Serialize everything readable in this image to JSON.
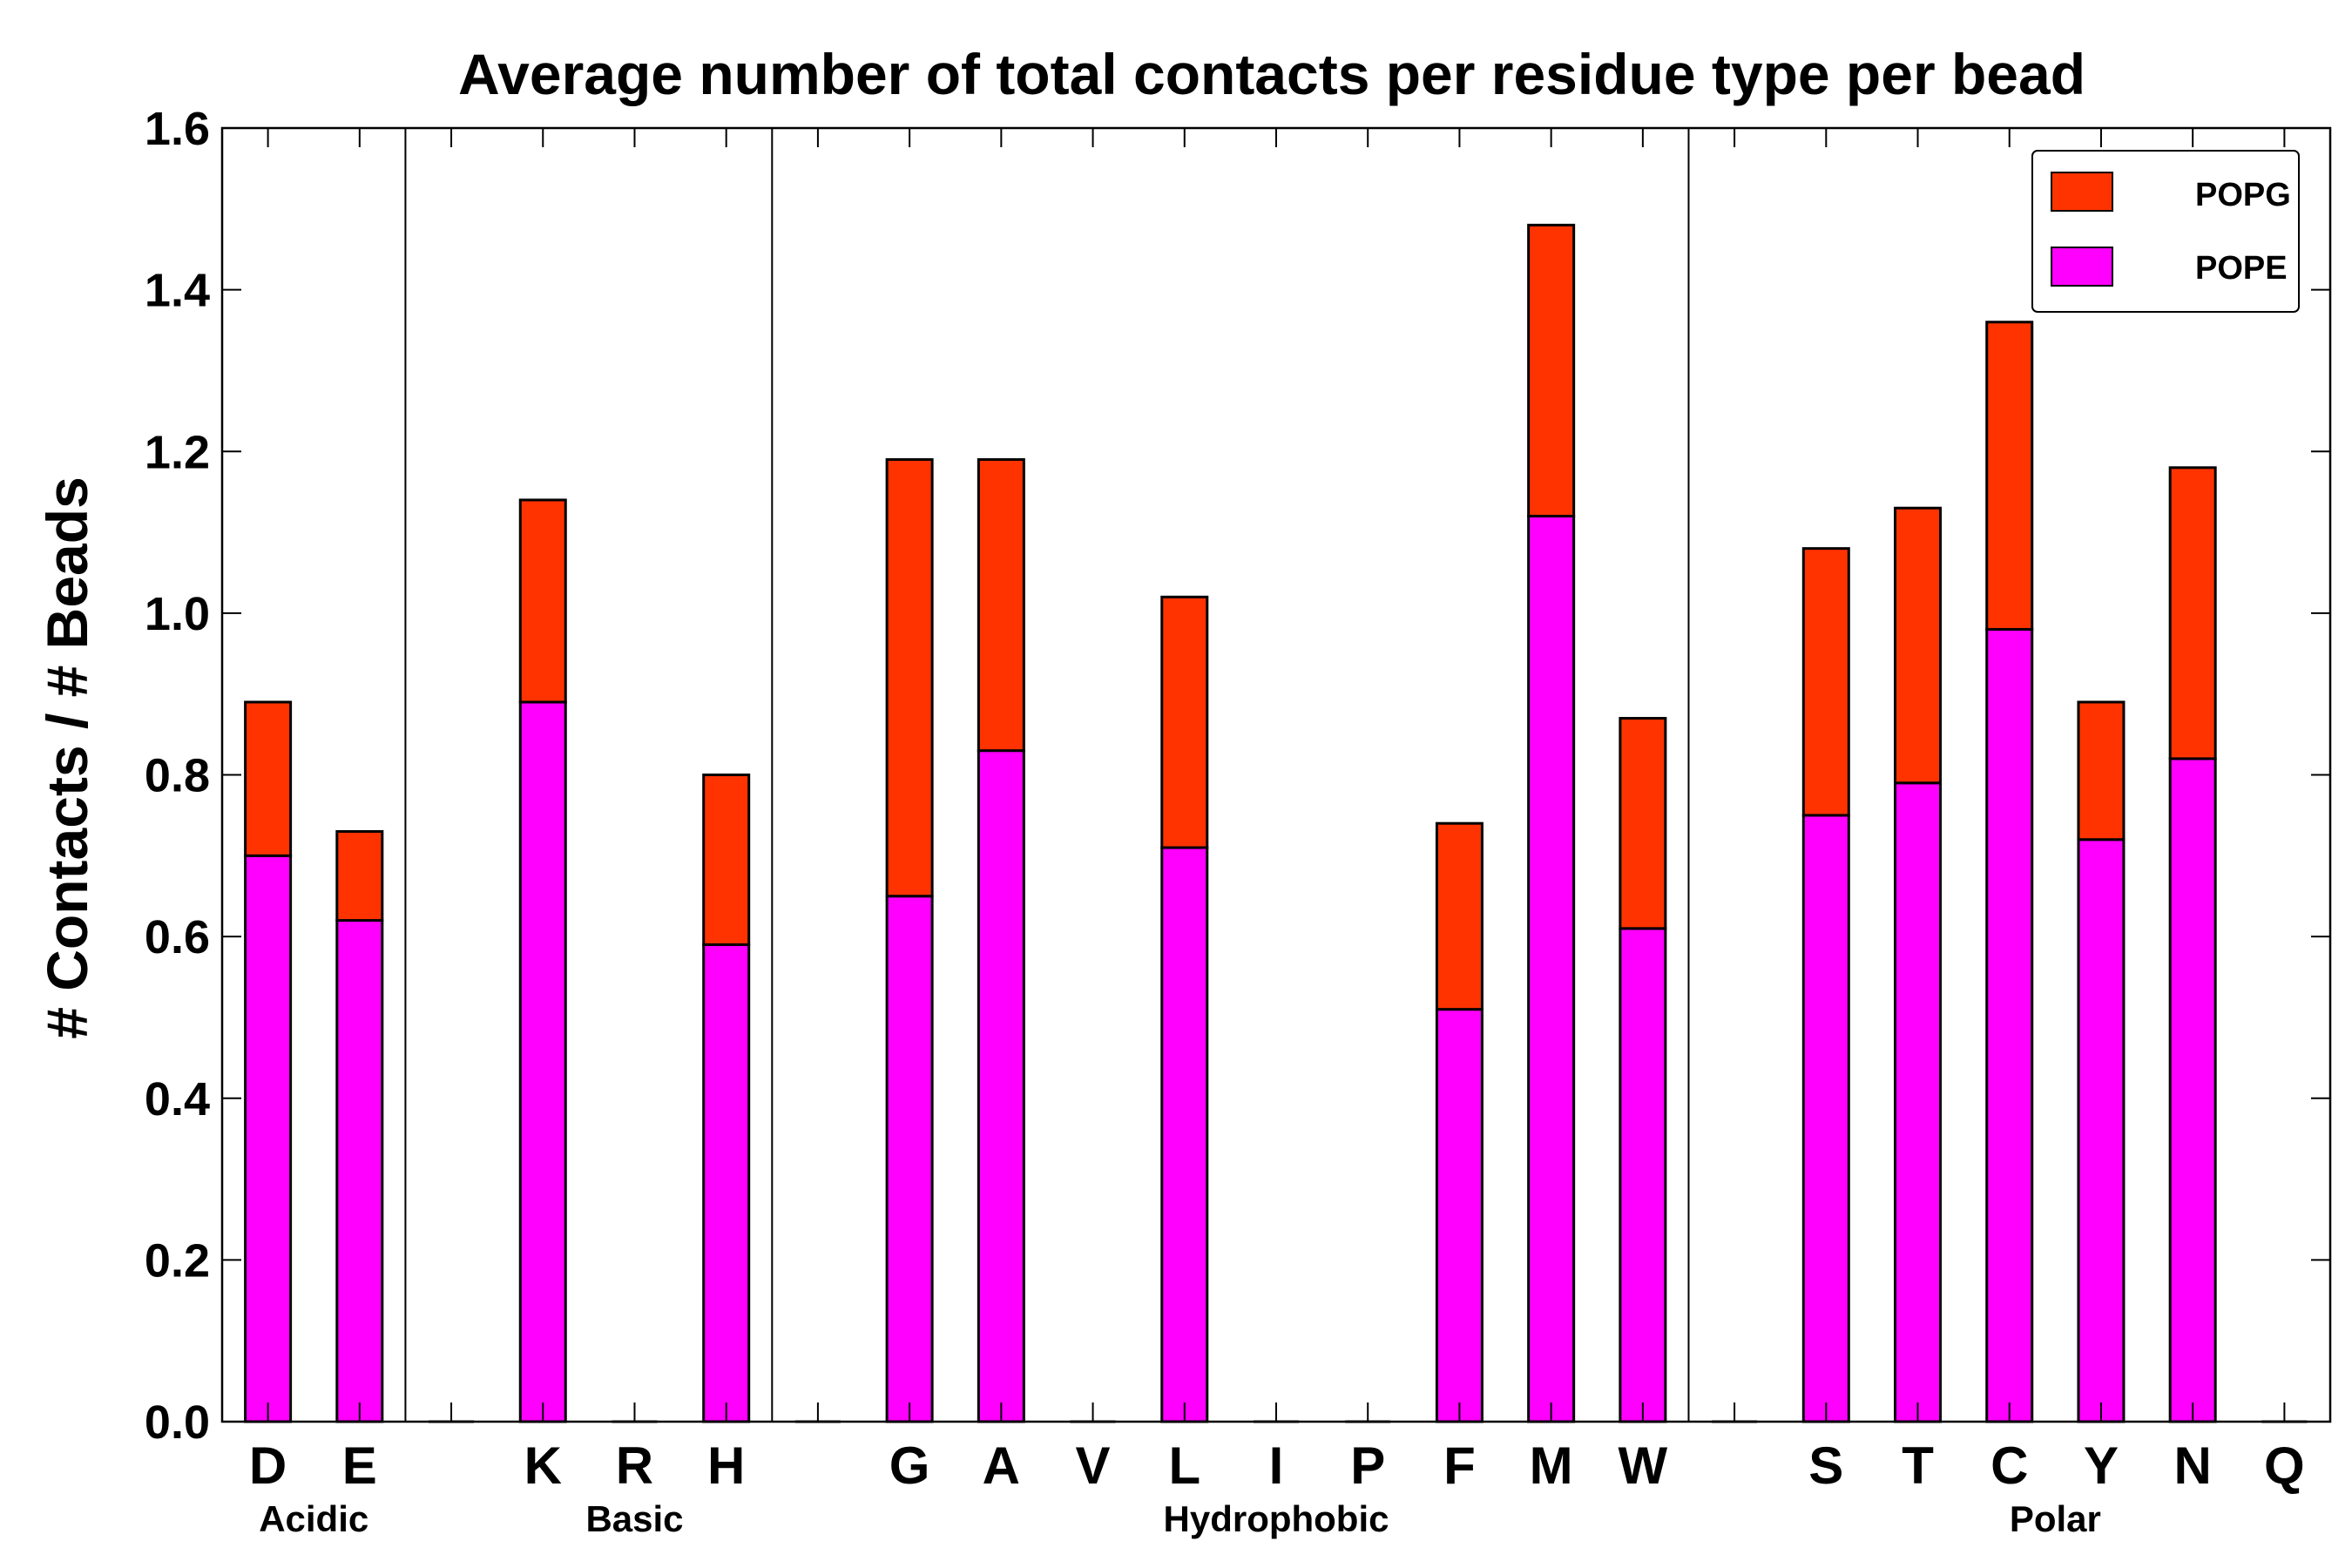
{
  "chart_data": {
    "type": "bar",
    "stacked": true,
    "title": "Average number of total contacts per residue type per bead",
    "xlabel": "",
    "ylabel": "# Contacts / # Beads",
    "ylim": [
      0,
      1.6
    ],
    "yticks": [
      "0.0",
      "0.2",
      "0.4",
      "0.6",
      "0.8",
      "1.0",
      "1.2",
      "1.4",
      "1.6"
    ],
    "ytick_values": [
      0.0,
      0.2,
      0.4,
      0.6,
      0.8,
      1.0,
      1.2,
      1.4,
      1.6
    ],
    "categories": [
      "D",
      "E",
      "",
      "K",
      "R",
      "H",
      "",
      "G",
      "A",
      "V",
      "L",
      "I",
      "P",
      "F",
      "M",
      "W",
      "",
      "S",
      "T",
      "C",
      "Y",
      "N",
      "Q"
    ],
    "series": [
      {
        "name": "POPE",
        "color": "#ff00ff",
        "values": [
          0.7,
          0.62,
          0,
          0.89,
          0,
          0.59,
          0,
          0.65,
          0.83,
          0,
          0.71,
          0,
          0,
          0.51,
          1.12,
          0.61,
          0,
          0.75,
          0.79,
          0.98,
          0.72,
          0.82,
          0
        ]
      },
      {
        "name": "POPG",
        "color": "#ff3300",
        "values": [
          0.19,
          0.11,
          0,
          0.25,
          0,
          0.21,
          0,
          0.54,
          0.36,
          0,
          0.31,
          0,
          0,
          0.23,
          0.36,
          0.26,
          0,
          0.33,
          0.34,
          0.38,
          0.17,
          0.36,
          0
        ]
      }
    ],
    "groups": [
      {
        "label": "Acidic",
        "members": [
          "D",
          "E"
        ]
      },
      {
        "label": "Basic",
        "members": [
          "K",
          "R",
          "H"
        ]
      },
      {
        "label": "Hydrophobic",
        "members": [
          "G",
          "A",
          "V",
          "L",
          "I",
          "P",
          "F",
          "M",
          "W"
        ]
      },
      {
        "label": "Polar",
        "members": [
          "S",
          "T",
          "C",
          "Y",
          "N",
          "Q"
        ]
      }
    ],
    "group_separators_after_index": [
      1.5,
      5.5,
      15.5
    ],
    "legend": {
      "position": "top-right",
      "entries": [
        {
          "label": "POPG",
          "color": "#ff3300"
        },
        {
          "label": "POPE",
          "color": "#ff00ff"
        }
      ]
    },
    "grid": false
  }
}
